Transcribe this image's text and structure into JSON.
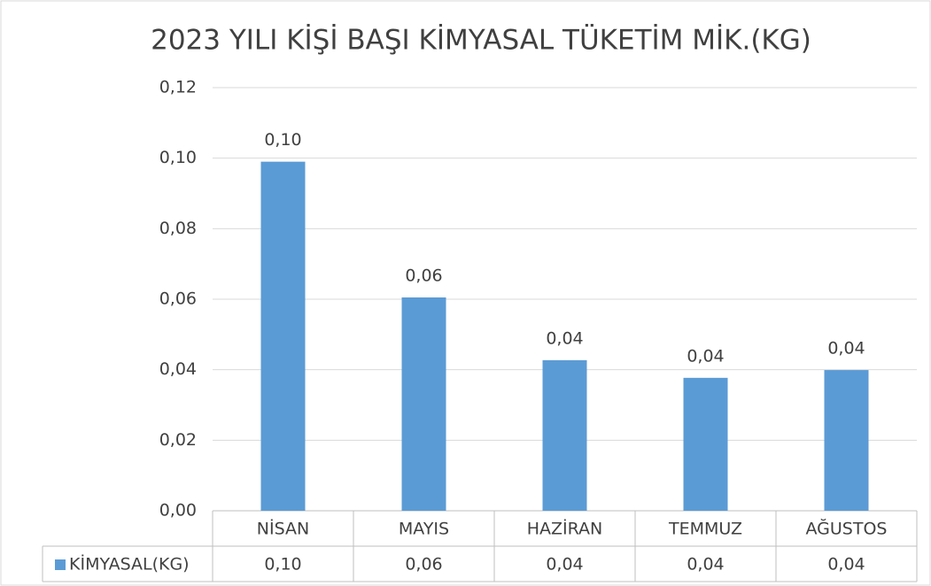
{
  "chart_data": {
    "type": "bar",
    "title": "2023 YILI KİŞİ BAŞI KİMYASAL TÜKETİM MİK.(KG)",
    "categories": [
      "NİSAN",
      "MAYIS",
      "HAZİRAN",
      "TEMMUZ",
      "AĞUSTOS"
    ],
    "series": [
      {
        "name": "KİMYASAL(KG)",
        "color": "#5b9bd5",
        "values": [
          0.099,
          0.0605,
          0.0427,
          0.0377,
          0.0399
        ],
        "value_labels": [
          "0,10",
          "0,06",
          "0,04",
          "0,04",
          "0,04"
        ]
      }
    ],
    "ylim": [
      0,
      0.12
    ],
    "yticks": [
      {
        "value": 0,
        "label": "0,00"
      },
      {
        "value": 0.02,
        "label": "0,02"
      },
      {
        "value": 0.04,
        "label": "0,04"
      },
      {
        "value": 0.06,
        "label": "0,06"
      },
      {
        "value": 0.08,
        "label": "0,08"
      },
      {
        "value": 0.1,
        "label": "0,10"
      },
      {
        "value": 0.12,
        "label": "0,12"
      }
    ],
    "grid": true
  }
}
